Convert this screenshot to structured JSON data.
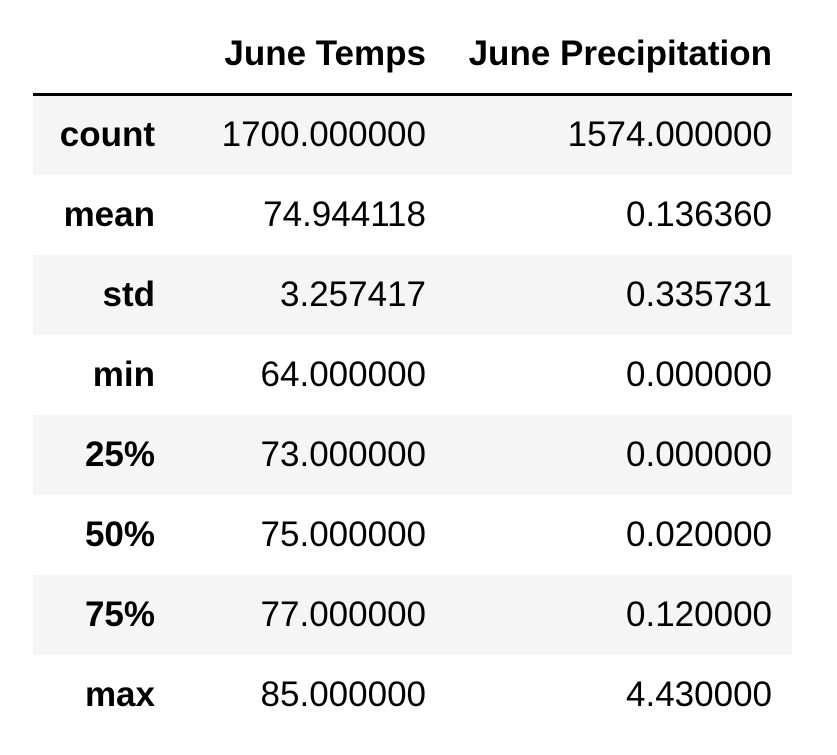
{
  "table": {
    "columns": [
      "June Temps",
      "June Precipitation"
    ],
    "rows": [
      {
        "index": "count",
        "june_temps": "1700.000000",
        "june_precipitation": "1574.000000"
      },
      {
        "index": "mean",
        "june_temps": "74.944118",
        "june_precipitation": "0.136360"
      },
      {
        "index": "std",
        "june_temps": "3.257417",
        "june_precipitation": "0.335731"
      },
      {
        "index": "min",
        "june_temps": "64.000000",
        "june_precipitation": "0.000000"
      },
      {
        "index": "25%",
        "june_temps": "73.000000",
        "june_precipitation": "0.000000"
      },
      {
        "index": "50%",
        "june_temps": "75.000000",
        "june_precipitation": "0.020000"
      },
      {
        "index": "75%",
        "june_temps": "77.000000",
        "june_precipitation": "0.120000"
      },
      {
        "index": "max",
        "june_temps": "85.000000",
        "june_precipitation": "4.430000"
      }
    ]
  }
}
